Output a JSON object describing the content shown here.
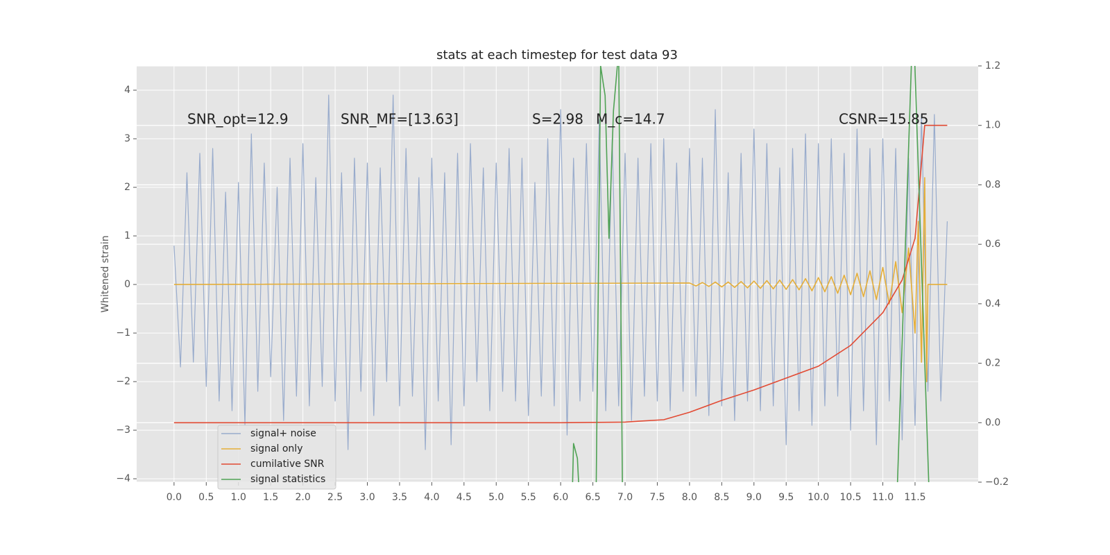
{
  "chart_data": {
    "type": "line",
    "title": "stats at each timestep for test data 93",
    "y_label": "Whitened strain",
    "annotations": [
      "SNR_opt=12.9",
      "SNR_MF=[13.63]",
      "S=2.98",
      "M_c=14.7",
      "CSNR=15.85"
    ],
    "xlim": [
      -0.58,
      12.48
    ],
    "ylim": [
      -4.07,
      4.5
    ],
    "y2lim": [
      -0.2,
      1.2
    ],
    "xticks": [
      {
        "value": 0,
        "label": "0.0"
      },
      {
        "value": 0.5,
        "label": "0.5"
      },
      {
        "value": 1,
        "label": "1.0"
      },
      {
        "value": 1.5,
        "label": "1.5"
      },
      {
        "value": 2,
        "label": "2.0"
      },
      {
        "value": 2.5,
        "label": "2.5"
      },
      {
        "value": 3,
        "label": "3.0"
      },
      {
        "value": 3.5,
        "label": "3.5"
      },
      {
        "value": 4,
        "label": "4.0"
      },
      {
        "value": 4.5,
        "label": "4.5"
      },
      {
        "value": 5,
        "label": "5.0"
      },
      {
        "value": 5.5,
        "label": "5.5"
      },
      {
        "value": 6,
        "label": "6.0"
      },
      {
        "value": 6.5,
        "label": "6.5"
      },
      {
        "value": 7,
        "label": "7.0"
      },
      {
        "value": 7.5,
        "label": "7.5"
      },
      {
        "value": 8,
        "label": "8.0"
      },
      {
        "value": 8.5,
        "label": "8.5"
      },
      {
        "value": 9,
        "label": "9.0"
      },
      {
        "value": 9.5,
        "label": "9.5"
      },
      {
        "value": 10,
        "label": "10.0"
      },
      {
        "value": 10.5,
        "label": "10.5"
      },
      {
        "value": 11,
        "label": "11.0"
      },
      {
        "value": 11.5,
        "label": "11.5"
      }
    ],
    "yticks": [
      {
        "value": -4,
        "label": "−4"
      },
      {
        "value": -3,
        "label": "−3"
      },
      {
        "value": -2,
        "label": "−2"
      },
      {
        "value": -1,
        "label": "−1"
      },
      0,
      1,
      2,
      3,
      4
    ],
    "y2ticks": [
      {
        "value": -0.2,
        "label": "−0.2"
      },
      {
        "value": 0,
        "label": "0.0"
      },
      {
        "value": 0.2,
        "label": "0.2"
      },
      {
        "value": 0.4,
        "label": "0.4"
      },
      {
        "value": 0.6,
        "label": "0.6"
      },
      {
        "value": 0.8,
        "label": "0.8"
      },
      {
        "value": 1,
        "label": "1.0"
      },
      {
        "value": 1.2,
        "label": "1.2"
      }
    ],
    "grid": true,
    "legend": "lower left",
    "series": [
      {
        "name": "signal+ noise",
        "color": "#98abcc",
        "x": [
          0,
          0.1,
          0.2,
          0.3,
          0.4,
          0.5,
          0.6,
          0.7,
          0.8,
          0.9,
          1,
          1.1,
          1.2,
          1.3,
          1.4,
          1.5,
          1.6,
          1.7,
          1.8,
          1.9,
          2,
          2.1,
          2.2,
          2.3,
          2.4,
          2.5,
          2.6,
          2.7,
          2.8,
          2.9,
          3,
          3.1,
          3.2,
          3.3,
          3.4,
          3.5,
          3.6,
          3.7,
          3.8,
          3.9,
          4,
          4.1,
          4.2,
          4.3,
          4.4,
          4.5,
          4.6,
          4.7,
          4.8,
          4.9,
          5,
          5.1,
          5.2,
          5.3,
          5.4,
          5.5,
          5.6,
          5.7,
          5.8,
          5.9,
          6,
          6.1,
          6.2,
          6.3,
          6.4,
          6.5,
          6.6,
          6.7,
          6.8,
          6.9,
          7,
          7.1,
          7.2,
          7.3,
          7.4,
          7.5,
          7.6,
          7.7,
          7.8,
          7.9,
          8,
          8.1,
          8.2,
          8.3,
          8.4,
          8.5,
          8.6,
          8.7,
          8.8,
          8.9,
          9,
          9.1,
          9.2,
          9.3,
          9.4,
          9.5,
          9.6,
          9.7,
          9.8,
          9.9,
          10,
          10.1,
          10.2,
          10.3,
          10.4,
          10.5,
          10.6,
          10.7,
          10.8,
          10.9,
          11,
          11.1,
          11.2,
          11.3,
          11.4,
          11.5,
          11.6,
          11.7,
          11.8,
          11.9,
          12
        ],
        "values": [
          0.8,
          -1.7,
          2.3,
          -1.6,
          2.7,
          -2.1,
          2.8,
          -2.4,
          1.9,
          -2.6,
          2.1,
          -2.9,
          3.1,
          -2.2,
          2.5,
          -1.9,
          2.0,
          -2.8,
          2.6,
          -2.3,
          2.9,
          -2.5,
          2.2,
          -2.1,
          3.9,
          -2.4,
          2.3,
          -3.4,
          2.6,
          -2.2,
          2.5,
          -2.7,
          2.4,
          -2.0,
          3.9,
          -2.5,
          2.8,
          -2.3,
          2.2,
          -3.4,
          2.6,
          -2.4,
          2.3,
          -3.3,
          2.7,
          -2.5,
          2.9,
          -2.0,
          2.4,
          -2.6,
          2.5,
          -2.2,
          2.8,
          -2.4,
          2.6,
          -2.7,
          2.1,
          -2.3,
          3.0,
          -2.5,
          3.6,
          -3.1,
          2.6,
          -2.4,
          2.9,
          -2.2,
          3.4,
          -2.6,
          3.0,
          -2.5,
          2.7,
          -2.8,
          2.6,
          -2.3,
          2.9,
          -2.4,
          3.0,
          -2.6,
          2.5,
          -2.2,
          2.8,
          -2.3,
          2.6,
          -2.7,
          3.6,
          -2.5,
          2.3,
          -2.8,
          2.7,
          -2.4,
          3.2,
          -2.6,
          2.9,
          -2.5,
          2.4,
          -3.3,
          2.8,
          -2.6,
          3.1,
          -2.9,
          2.9,
          -2.5,
          3.0,
          -2.3,
          2.7,
          -3.0,
          3.2,
          -2.6,
          2.8,
          -3.3,
          3.0,
          -2.4,
          2.8,
          -3.2,
          2.6,
          -2.9,
          3.5,
          -2.2,
          3.5,
          -2.4,
          1.3
        ]
      },
      {
        "name": "signal only",
        "color": "#e5ae38",
        "x": [
          0,
          8,
          8.1,
          8.2,
          8.3,
          8.4,
          8.5,
          8.6,
          8.7,
          8.8,
          8.9,
          9,
          9.1,
          9.2,
          9.3,
          9.4,
          9.5,
          9.6,
          9.7,
          9.8,
          9.9,
          10,
          10.1,
          10.2,
          10.3,
          10.4,
          10.5,
          10.6,
          10.7,
          10.8,
          10.9,
          11,
          11.1,
          11.2,
          11.3,
          11.4,
          11.5,
          11.55,
          11.6,
          11.65,
          11.68,
          11.7,
          12
        ],
        "values": [
          0,
          0.03,
          -0.03,
          0.04,
          -0.04,
          0.05,
          -0.05,
          0.05,
          -0.06,
          0.06,
          -0.07,
          0.07,
          -0.08,
          0.08,
          -0.09,
          0.09,
          -0.1,
          0.1,
          -0.11,
          0.12,
          -0.13,
          0.14,
          -0.15,
          0.16,
          -0.18,
          0.19,
          -0.21,
          0.23,
          -0.25,
          0.28,
          -0.31,
          0.35,
          -0.4,
          0.47,
          -0.58,
          0.75,
          -1.0,
          1.3,
          -1.6,
          2.2,
          -2.0,
          0,
          0
        ]
      },
      {
        "name": "cumilative SNR",
        "color": "#e24a33",
        "axis": "y2",
        "x": [
          0,
          6,
          7,
          7.2,
          7.6,
          8,
          8.5,
          9,
          9.5,
          10,
          10.5,
          11,
          11.3,
          11.5,
          11.65,
          12
        ],
        "values": [
          0,
          0,
          0.002,
          0.005,
          0.01,
          0.035,
          0.075,
          0.11,
          0.15,
          0.19,
          0.26,
          0.37,
          0.48,
          0.62,
          1.0,
          1.0
        ]
      },
      {
        "name": "signal statistics",
        "color": "#4fa254",
        "axis": "y2",
        "x": [
          6.18,
          6.2,
          6.26,
          6.29,
          6.4,
          6.55,
          6.62,
          6.69,
          6.75,
          6.82,
          6.9,
          6.96,
          9,
          11.22,
          11.45,
          11.49,
          11.72
        ],
        "values": [
          -0.25,
          -0.07,
          -0.12,
          -0.25,
          null,
          -0.25,
          1.2,
          1.1,
          0.62,
          1.05,
          1.25,
          -0.25,
          null,
          -0.25,
          1.25,
          1.25,
          -0.25
        ]
      }
    ]
  }
}
